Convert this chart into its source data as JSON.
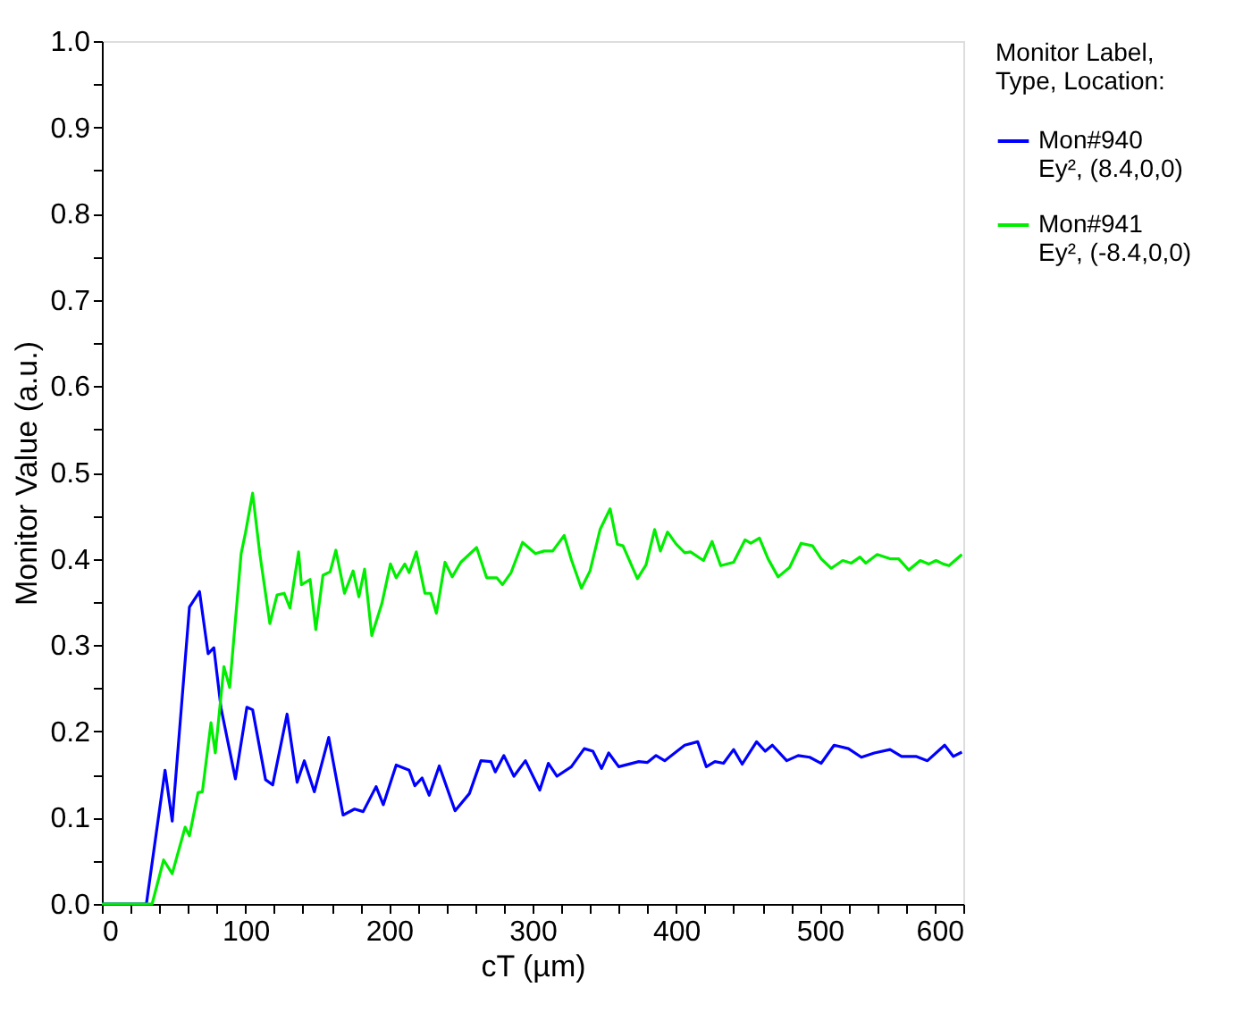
{
  "chart_data": {
    "type": "line",
    "xlabel": "cT (µm)",
    "ylabel": "Monitor Value (a.u.)",
    "legend_title": "Monitor Label,\nType, Location:",
    "legend": "right",
    "grid": false,
    "line_style": "solid",
    "marker": "none",
    "xlim": [
      0,
      600
    ],
    "ylim": [
      0,
      1
    ],
    "xticks": [
      0,
      {
        "value": 20,
        "label": null
      },
      {
        "value": 40,
        "label": null
      },
      {
        "value": 60,
        "label": null
      },
      {
        "value": 80,
        "label": null
      },
      100,
      {
        "value": 120,
        "label": null
      },
      {
        "value": 140,
        "label": null
      },
      {
        "value": 160,
        "label": null
      },
      {
        "value": 180,
        "label": null
      },
      200,
      {
        "value": 220,
        "label": null
      },
      {
        "value": 240,
        "label": null
      },
      {
        "value": 260,
        "label": null
      },
      {
        "value": 280,
        "label": null
      },
      300,
      {
        "value": 320,
        "label": null
      },
      {
        "value": 340,
        "label": null
      },
      {
        "value": 360,
        "label": null
      },
      {
        "value": 380,
        "label": null
      },
      400,
      {
        "value": 420,
        "label": null
      },
      {
        "value": 440,
        "label": null
      },
      {
        "value": 460,
        "label": null
      },
      {
        "value": 480,
        "label": null
      },
      500,
      {
        "value": 520,
        "label": null
      },
      {
        "value": 540,
        "label": null
      },
      {
        "value": 560,
        "label": null
      },
      {
        "value": 580,
        "label": null
      },
      600
    ],
    "yticks": [
      {
        "value": 0,
        "label": "0.0"
      },
      {
        "value": 0.05,
        "label": null
      },
      {
        "value": 0.1,
        "label": "0.1"
      },
      {
        "value": 0.15,
        "label": null
      },
      {
        "value": 0.2,
        "label": "0.2"
      },
      {
        "value": 0.25,
        "label": null
      },
      {
        "value": 0.3,
        "label": "0.3"
      },
      {
        "value": 0.35,
        "label": null
      },
      {
        "value": 0.4,
        "label": "0.4"
      },
      {
        "value": 0.45,
        "label": null
      },
      {
        "value": 0.5,
        "label": "0.5"
      },
      {
        "value": 0.55,
        "label": null
      },
      {
        "value": 0.6,
        "label": "0.6"
      },
      {
        "value": 0.65,
        "label": null
      },
      {
        "value": 0.7,
        "label": "0.7"
      },
      {
        "value": 0.75,
        "label": null
      },
      {
        "value": 0.8,
        "label": "0.8"
      },
      {
        "value": 0.85,
        "label": null
      },
      {
        "value": 0.9,
        "label": "0.9"
      },
      {
        "value": 0.95,
        "label": null
      },
      {
        "value": 1.0,
        "label": "1.0"
      }
    ],
    "series": [
      {
        "name": "Mon#940\nEy², (8.4,0,0)",
        "color": "#0000ff",
        "x": [
          0,
          31,
          44,
          49,
          61,
          68,
          74,
          78,
          83,
          93,
          101,
          105,
          114,
          119,
          129,
          136,
          141,
          148,
          158,
          168,
          176,
          182,
          191,
          196,
          205,
          214,
          218,
          223,
          228,
          235,
          246,
          256,
          264,
          271,
          274,
          280,
          287,
          295,
          305,
          311,
          317,
          327,
          336,
          342,
          348,
          353,
          360,
          374,
          380,
          386,
          392,
          406,
          415,
          421,
          427,
          433,
          440,
          446,
          456,
          462,
          467,
          477,
          485,
          493,
          501,
          510,
          520,
          529,
          538,
          549,
          557,
          567,
          575,
          587,
          593,
          599
        ],
        "values": [
          0,
          0,
          0.155,
          0.096,
          0.344,
          0.362,
          0.29,
          0.297,
          0.227,
          0.145,
          0.228,
          0.225,
          0.144,
          0.138,
          0.22,
          0.141,
          0.166,
          0.13,
          0.193,
          0.103,
          0.11,
          0.107,
          0.136,
          0.115,
          0.161,
          0.155,
          0.137,
          0.146,
          0.126,
          0.16,
          0.108,
          0.128,
          0.166,
          0.165,
          0.153,
          0.172,
          0.148,
          0.166,
          0.132,
          0.163,
          0.148,
          0.159,
          0.18,
          0.177,
          0.157,
          0.175,
          0.159,
          0.165,
          0.164,
          0.172,
          0.166,
          0.184,
          0.188,
          0.159,
          0.165,
          0.163,
          0.179,
          0.162,
          0.188,
          0.177,
          0.184,
          0.166,
          0.172,
          0.17,
          0.163,
          0.184,
          0.18,
          0.17,
          0.175,
          0.179,
          0.171,
          0.171,
          0.166,
          0.184,
          0.171,
          0.176
        ]
      },
      {
        "name": "Mon#941\nEy², (-8.4,0,0)",
        "color": "#00ee00",
        "x": [
          0,
          35,
          43,
          49,
          58,
          61,
          67,
          70,
          76,
          79,
          85,
          89,
          97,
          100,
          105,
          110,
          117,
          122,
          127,
          131,
          137,
          139,
          145,
          149,
          154,
          159,
          163,
          169,
          175,
          179,
          183,
          188,
          195,
          201,
          205,
          211,
          214,
          219,
          225,
          229,
          233,
          239,
          244,
          250,
          261,
          268,
          275,
          279,
          285,
          293,
          302,
          308,
          314,
          322,
          327,
          334,
          340,
          347,
          354,
          359,
          363,
          373,
          379,
          385,
          389,
          394,
          400,
          406,
          410,
          419,
          425,
          431,
          440,
          448,
          452,
          458,
          464,
          471,
          479,
          487,
          495,
          501,
          508,
          516,
          522,
          528,
          532,
          540,
          549,
          555,
          562,
          570,
          576,
          581,
          586,
          590,
          599
        ],
        "values": [
          0,
          0,
          0.051,
          0.035,
          0.089,
          0.079,
          0.129,
          0.13,
          0.21,
          0.175,
          0.275,
          0.251,
          0.406,
          0.43,
          0.476,
          0.406,
          0.325,
          0.358,
          0.36,
          0.343,
          0.408,
          0.37,
          0.376,
          0.318,
          0.381,
          0.385,
          0.41,
          0.36,
          0.386,
          0.356,
          0.388,
          0.311,
          0.348,
          0.394,
          0.378,
          0.394,
          0.384,
          0.408,
          0.36,
          0.36,
          0.337,
          0.396,
          0.379,
          0.396,
          0.413,
          0.378,
          0.378,
          0.37,
          0.384,
          0.419,
          0.406,
          0.409,
          0.409,
          0.427,
          0.399,
          0.366,
          0.386,
          0.434,
          0.458,
          0.417,
          0.415,
          0.377,
          0.393,
          0.434,
          0.409,
          0.431,
          0.417,
          0.407,
          0.408,
          0.398,
          0.42,
          0.392,
          0.396,
          0.422,
          0.418,
          0.424,
          0.4,
          0.379,
          0.39,
          0.418,
          0.415,
          0.4,
          0.389,
          0.398,
          0.395,
          0.402,
          0.395,
          0.405,
          0.4,
          0.4,
          0.387,
          0.398,
          0.394,
          0.398,
          0.394,
          0.392,
          0.405
        ]
      }
    ]
  }
}
